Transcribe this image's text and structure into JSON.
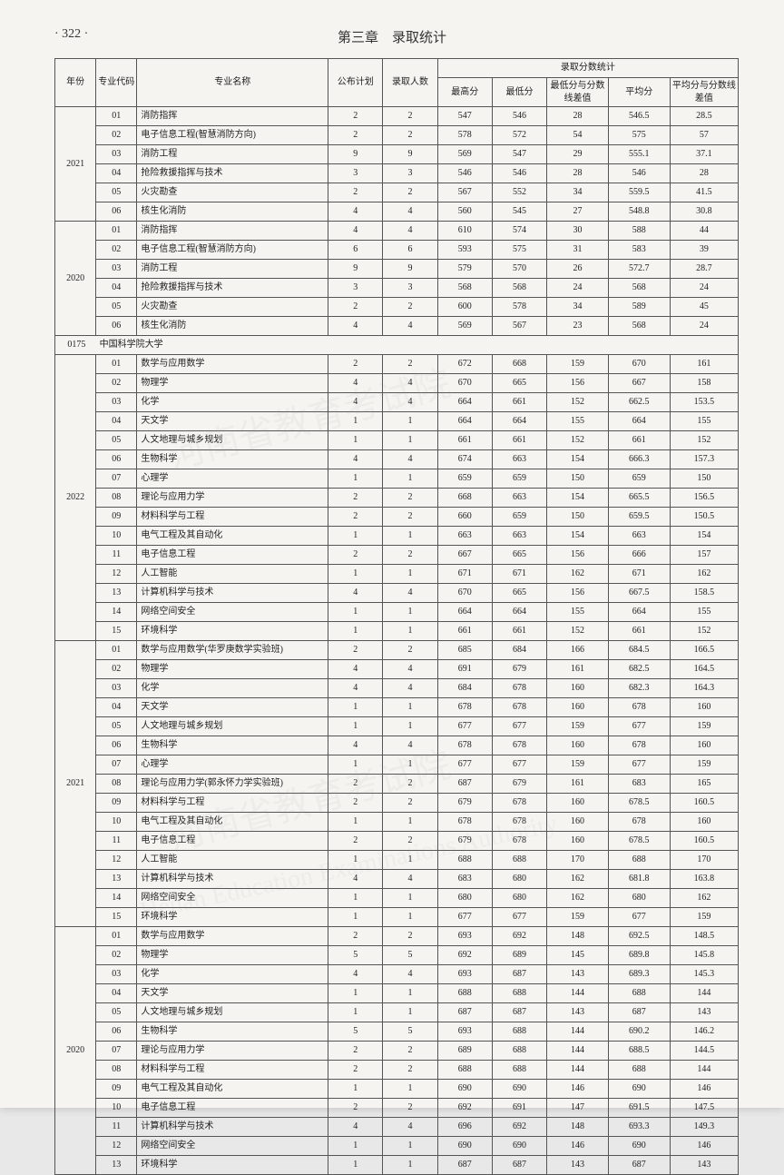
{
  "page_number": "· 322 ·",
  "chapter_title": "第三章　录取统计",
  "columns": {
    "year": "年份",
    "major_code": "专业代码",
    "major_name": "专业名称",
    "plan": "公布计划",
    "admit": "录取人数",
    "score_stats": "录取分数统计",
    "max": "最高分",
    "min": "最低分",
    "min_diff": "最低分与分数线差值",
    "avg": "平均分",
    "avg_diff": "平均分与分数线差值"
  },
  "groups": [
    {
      "year": "2021",
      "rows": [
        {
          "code": "01",
          "name": "消防指挥",
          "plan": "2",
          "admit": "2",
          "max": "547",
          "min": "546",
          "min_diff": "28",
          "avg": "546.5",
          "avg_diff": "28.5"
        },
        {
          "code": "02",
          "name": "电子信息工程(智慧消防方向)",
          "plan": "2",
          "admit": "2",
          "max": "578",
          "min": "572",
          "min_diff": "54",
          "avg": "575",
          "avg_diff": "57"
        },
        {
          "code": "03",
          "name": "消防工程",
          "plan": "9",
          "admit": "9",
          "max": "569",
          "min": "547",
          "min_diff": "29",
          "avg": "555.1",
          "avg_diff": "37.1"
        },
        {
          "code": "04",
          "name": "抢险救援指挥与技术",
          "plan": "3",
          "admit": "3",
          "max": "546",
          "min": "546",
          "min_diff": "28",
          "avg": "546",
          "avg_diff": "28"
        },
        {
          "code": "05",
          "name": "火灾勘查",
          "plan": "2",
          "admit": "2",
          "max": "567",
          "min": "552",
          "min_diff": "34",
          "avg": "559.5",
          "avg_diff": "41.5"
        },
        {
          "code": "06",
          "name": "核生化消防",
          "plan": "4",
          "admit": "4",
          "max": "560",
          "min": "545",
          "min_diff": "27",
          "avg": "548.8",
          "avg_diff": "30.8"
        }
      ]
    },
    {
      "year": "2020",
      "rows": [
        {
          "code": "01",
          "name": "消防指挥",
          "plan": "4",
          "admit": "4",
          "max": "610",
          "min": "574",
          "min_diff": "30",
          "avg": "588",
          "avg_diff": "44"
        },
        {
          "code": "02",
          "name": "电子信息工程(智慧消防方向)",
          "plan": "6",
          "admit": "6",
          "max": "593",
          "min": "575",
          "min_diff": "31",
          "avg": "583",
          "avg_diff": "39"
        },
        {
          "code": "03",
          "name": "消防工程",
          "plan": "9",
          "admit": "9",
          "max": "579",
          "min": "570",
          "min_diff": "26",
          "avg": "572.7",
          "avg_diff": "28.7"
        },
        {
          "code": "04",
          "name": "抢险救援指挥与技术",
          "plan": "3",
          "admit": "3",
          "max": "568",
          "min": "568",
          "min_diff": "24",
          "avg": "568",
          "avg_diff": "24"
        },
        {
          "code": "05",
          "name": "火灾勘查",
          "plan": "2",
          "admit": "2",
          "max": "600",
          "min": "578",
          "min_diff": "34",
          "avg": "589",
          "avg_diff": "45"
        },
        {
          "code": "06",
          "name": "核生化消防",
          "plan": "4",
          "admit": "4",
          "max": "569",
          "min": "567",
          "min_diff": "23",
          "avg": "568",
          "avg_diff": "24"
        }
      ]
    }
  ],
  "section_header": {
    "code": "0175",
    "name": "中国科学院大学"
  },
  "groups2": [
    {
      "year": "2022",
      "rows": [
        {
          "code": "01",
          "name": "数学与应用数学",
          "plan": "2",
          "admit": "2",
          "max": "672",
          "min": "668",
          "min_diff": "159",
          "avg": "670",
          "avg_diff": "161"
        },
        {
          "code": "02",
          "name": "物理学",
          "plan": "4",
          "admit": "4",
          "max": "670",
          "min": "665",
          "min_diff": "156",
          "avg": "667",
          "avg_diff": "158"
        },
        {
          "code": "03",
          "name": "化学",
          "plan": "4",
          "admit": "4",
          "max": "664",
          "min": "661",
          "min_diff": "152",
          "avg": "662.5",
          "avg_diff": "153.5"
        },
        {
          "code": "04",
          "name": "天文学",
          "plan": "1",
          "admit": "1",
          "max": "664",
          "min": "664",
          "min_diff": "155",
          "avg": "664",
          "avg_diff": "155"
        },
        {
          "code": "05",
          "name": "人文地理与城乡规划",
          "plan": "1",
          "admit": "1",
          "max": "661",
          "min": "661",
          "min_diff": "152",
          "avg": "661",
          "avg_diff": "152"
        },
        {
          "code": "06",
          "name": "生物科学",
          "plan": "4",
          "admit": "4",
          "max": "674",
          "min": "663",
          "min_diff": "154",
          "avg": "666.3",
          "avg_diff": "157.3"
        },
        {
          "code": "07",
          "name": "心理学",
          "plan": "1",
          "admit": "1",
          "max": "659",
          "min": "659",
          "min_diff": "150",
          "avg": "659",
          "avg_diff": "150"
        },
        {
          "code": "08",
          "name": "理论与应用力学",
          "plan": "2",
          "admit": "2",
          "max": "668",
          "min": "663",
          "min_diff": "154",
          "avg": "665.5",
          "avg_diff": "156.5"
        },
        {
          "code": "09",
          "name": "材料科学与工程",
          "plan": "2",
          "admit": "2",
          "max": "660",
          "min": "659",
          "min_diff": "150",
          "avg": "659.5",
          "avg_diff": "150.5"
        },
        {
          "code": "10",
          "name": "电气工程及其自动化",
          "plan": "1",
          "admit": "1",
          "max": "663",
          "min": "663",
          "min_diff": "154",
          "avg": "663",
          "avg_diff": "154"
        },
        {
          "code": "11",
          "name": "电子信息工程",
          "plan": "2",
          "admit": "2",
          "max": "667",
          "min": "665",
          "min_diff": "156",
          "avg": "666",
          "avg_diff": "157"
        },
        {
          "code": "12",
          "name": "人工智能",
          "plan": "1",
          "admit": "1",
          "max": "671",
          "min": "671",
          "min_diff": "162",
          "avg": "671",
          "avg_diff": "162"
        },
        {
          "code": "13",
          "name": "计算机科学与技术",
          "plan": "4",
          "admit": "4",
          "max": "670",
          "min": "665",
          "min_diff": "156",
          "avg": "667.5",
          "avg_diff": "158.5"
        },
        {
          "code": "14",
          "name": "网络空间安全",
          "plan": "1",
          "admit": "1",
          "max": "664",
          "min": "664",
          "min_diff": "155",
          "avg": "664",
          "avg_diff": "155"
        },
        {
          "code": "15",
          "name": "环境科学",
          "plan": "1",
          "admit": "1",
          "max": "661",
          "min": "661",
          "min_diff": "152",
          "avg": "661",
          "avg_diff": "152"
        }
      ]
    },
    {
      "year": "2021",
      "rows": [
        {
          "code": "01",
          "name": "数学与应用数学(华罗庚数学实验班)",
          "plan": "2",
          "admit": "2",
          "max": "685",
          "min": "684",
          "min_diff": "166",
          "avg": "684.5",
          "avg_diff": "166.5"
        },
        {
          "code": "02",
          "name": "物理学",
          "plan": "4",
          "admit": "4",
          "max": "691",
          "min": "679",
          "min_diff": "161",
          "avg": "682.5",
          "avg_diff": "164.5"
        },
        {
          "code": "03",
          "name": "化学",
          "plan": "4",
          "admit": "4",
          "max": "684",
          "min": "678",
          "min_diff": "160",
          "avg": "682.3",
          "avg_diff": "164.3"
        },
        {
          "code": "04",
          "name": "天文学",
          "plan": "1",
          "admit": "1",
          "max": "678",
          "min": "678",
          "min_diff": "160",
          "avg": "678",
          "avg_diff": "160"
        },
        {
          "code": "05",
          "name": "人文地理与城乡规划",
          "plan": "1",
          "admit": "1",
          "max": "677",
          "min": "677",
          "min_diff": "159",
          "avg": "677",
          "avg_diff": "159"
        },
        {
          "code": "06",
          "name": "生物科学",
          "plan": "4",
          "admit": "4",
          "max": "678",
          "min": "678",
          "min_diff": "160",
          "avg": "678",
          "avg_diff": "160"
        },
        {
          "code": "07",
          "name": "心理学",
          "plan": "1",
          "admit": "1",
          "max": "677",
          "min": "677",
          "min_diff": "159",
          "avg": "677",
          "avg_diff": "159"
        },
        {
          "code": "08",
          "name": "理论与应用力学(郭永怀力学实验班)",
          "plan": "2",
          "admit": "2",
          "max": "687",
          "min": "679",
          "min_diff": "161",
          "avg": "683",
          "avg_diff": "165"
        },
        {
          "code": "09",
          "name": "材料科学与工程",
          "plan": "2",
          "admit": "2",
          "max": "679",
          "min": "678",
          "min_diff": "160",
          "avg": "678.5",
          "avg_diff": "160.5"
        },
        {
          "code": "10",
          "name": "电气工程及其自动化",
          "plan": "1",
          "admit": "1",
          "max": "678",
          "min": "678",
          "min_diff": "160",
          "avg": "678",
          "avg_diff": "160"
        },
        {
          "code": "11",
          "name": "电子信息工程",
          "plan": "2",
          "admit": "2",
          "max": "679",
          "min": "678",
          "min_diff": "160",
          "avg": "678.5",
          "avg_diff": "160.5"
        },
        {
          "code": "12",
          "name": "人工智能",
          "plan": "1",
          "admit": "1",
          "max": "688",
          "min": "688",
          "min_diff": "170",
          "avg": "688",
          "avg_diff": "170"
        },
        {
          "code": "13",
          "name": "计算机科学与技术",
          "plan": "4",
          "admit": "4",
          "max": "683",
          "min": "680",
          "min_diff": "162",
          "avg": "681.8",
          "avg_diff": "163.8"
        },
        {
          "code": "14",
          "name": "网络空间安全",
          "plan": "1",
          "admit": "1",
          "max": "680",
          "min": "680",
          "min_diff": "162",
          "avg": "680",
          "avg_diff": "162"
        },
        {
          "code": "15",
          "name": "环境科学",
          "plan": "1",
          "admit": "1",
          "max": "677",
          "min": "677",
          "min_diff": "159",
          "avg": "677",
          "avg_diff": "159"
        }
      ]
    },
    {
      "year": "2020",
      "rows": [
        {
          "code": "01",
          "name": "数学与应用数学",
          "plan": "2",
          "admit": "2",
          "max": "693",
          "min": "692",
          "min_diff": "148",
          "avg": "692.5",
          "avg_diff": "148.5"
        },
        {
          "code": "02",
          "name": "物理学",
          "plan": "5",
          "admit": "5",
          "max": "692",
          "min": "689",
          "min_diff": "145",
          "avg": "689.8",
          "avg_diff": "145.8"
        },
        {
          "code": "03",
          "name": "化学",
          "plan": "4",
          "admit": "4",
          "max": "693",
          "min": "687",
          "min_diff": "143",
          "avg": "689.3",
          "avg_diff": "145.3"
        },
        {
          "code": "04",
          "name": "天文学",
          "plan": "1",
          "admit": "1",
          "max": "688",
          "min": "688",
          "min_diff": "144",
          "avg": "688",
          "avg_diff": "144"
        },
        {
          "code": "05",
          "name": "人文地理与城乡规划",
          "plan": "1",
          "admit": "1",
          "max": "687",
          "min": "687",
          "min_diff": "143",
          "avg": "687",
          "avg_diff": "143"
        },
        {
          "code": "06",
          "name": "生物科学",
          "plan": "5",
          "admit": "5",
          "max": "693",
          "min": "688",
          "min_diff": "144",
          "avg": "690.2",
          "avg_diff": "146.2"
        },
        {
          "code": "07",
          "name": "理论与应用力学",
          "plan": "2",
          "admit": "2",
          "max": "689",
          "min": "688",
          "min_diff": "144",
          "avg": "688.5",
          "avg_diff": "144.5"
        },
        {
          "code": "08",
          "name": "材料科学与工程",
          "plan": "2",
          "admit": "2",
          "max": "688",
          "min": "688",
          "min_diff": "144",
          "avg": "688",
          "avg_diff": "144"
        },
        {
          "code": "09",
          "name": "电气工程及其自动化",
          "plan": "1",
          "admit": "1",
          "max": "690",
          "min": "690",
          "min_diff": "146",
          "avg": "690",
          "avg_diff": "146"
        },
        {
          "code": "10",
          "name": "电子信息工程",
          "plan": "2",
          "admit": "2",
          "max": "692",
          "min": "691",
          "min_diff": "147",
          "avg": "691.5",
          "avg_diff": "147.5"
        },
        {
          "code": "11",
          "name": "计算机科学与技术",
          "plan": "4",
          "admit": "4",
          "max": "696",
          "min": "692",
          "min_diff": "148",
          "avg": "693.3",
          "avg_diff": "149.3"
        },
        {
          "code": "12",
          "name": "网络空间安全",
          "plan": "1",
          "admit": "1",
          "max": "690",
          "min": "690",
          "min_diff": "146",
          "avg": "690",
          "avg_diff": "146"
        },
        {
          "code": "13",
          "name": "环境科学",
          "plan": "1",
          "admit": "1",
          "max": "687",
          "min": "687",
          "min_diff": "143",
          "avg": "687",
          "avg_diff": "143"
        }
      ]
    }
  ],
  "watermark1": "河南省教育考试院",
  "watermark2": "河南省教育考试院",
  "watermark3": "Henan Education Examinations Authority"
}
